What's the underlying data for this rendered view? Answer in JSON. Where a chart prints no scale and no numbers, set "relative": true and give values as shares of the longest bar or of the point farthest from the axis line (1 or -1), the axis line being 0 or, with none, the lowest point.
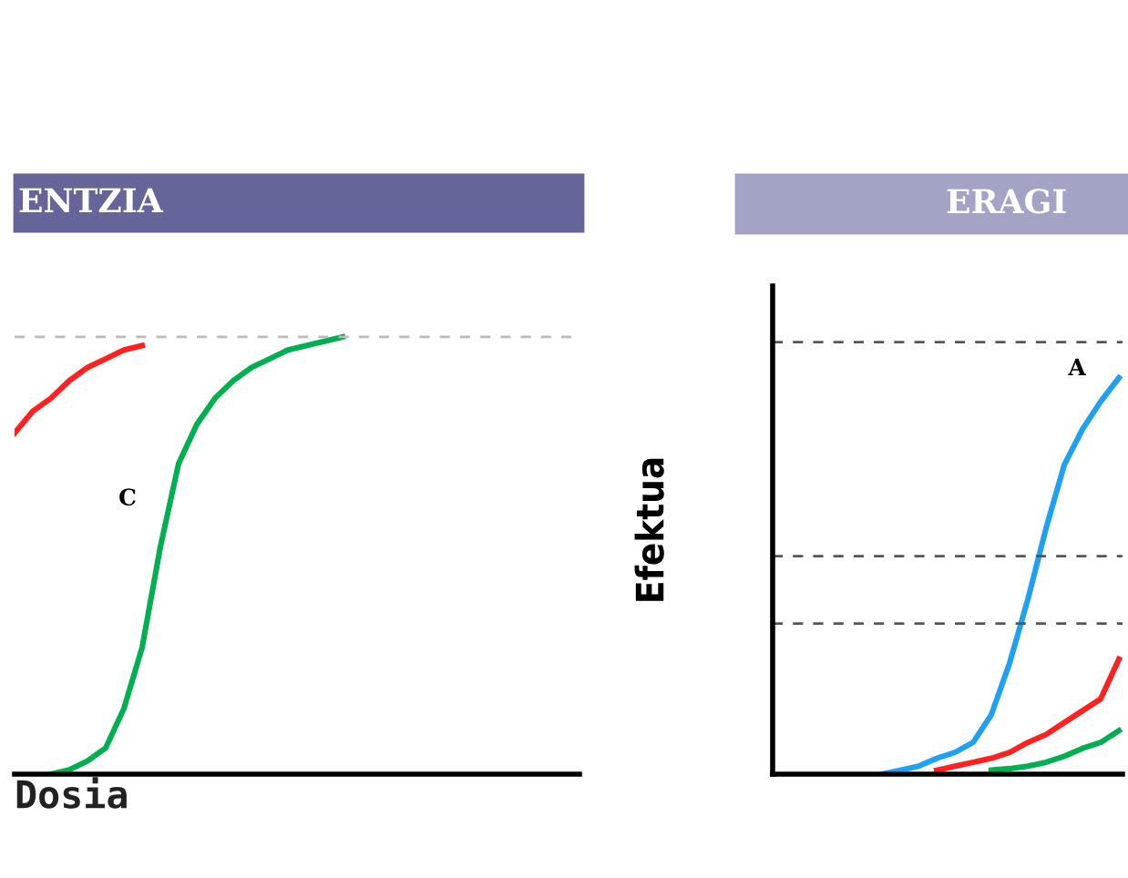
{
  "chart_data": [
    {
      "type": "line",
      "title": "ENTZIA",
      "xlabel": "Dosia",
      "relative": true,
      "marker": "none",
      "line_style": "solid",
      "categories": [
        null,
        null,
        null,
        null,
        null,
        null,
        null,
        null,
        null,
        null,
        null,
        null,
        null,
        null,
        null,
        null,
        null,
        null,
        null,
        null,
        null,
        null,
        null,
        null,
        null,
        null,
        null,
        null,
        null,
        null,
        null,
        null
      ],
      "series": [
        {
          "color": "#ff2020",
          "values": [
            0.78,
            0.83,
            0.86,
            0.9,
            0.93,
            0.95,
            0.97,
            0.98,
            null,
            null,
            null,
            null,
            null,
            null,
            null,
            null,
            null,
            null,
            null,
            null,
            null,
            null,
            null,
            null,
            null,
            null,
            null,
            null,
            null,
            null,
            null,
            null
          ]
        },
        {
          "color": "#00b050",
          "values": [
            null,
            null,
            0.0,
            0.01,
            0.03,
            0.06,
            0.15,
            0.29,
            0.52,
            0.71,
            0.8,
            0.86,
            0.9,
            0.93,
            0.95,
            0.97,
            0.98,
            0.99,
            1.0,
            null,
            null,
            null,
            null,
            null,
            null,
            null,
            null,
            null,
            null,
            null,
            null,
            null
          ]
        }
      ],
      "ref_lines": [
        {
          "axis": "y",
          "value": 1.0,
          "color": "#bbbbbb",
          "line_style": "dashed"
        }
      ],
      "annotations": [
        "C"
      ]
    },
    {
      "type": "line",
      "title": "ERAGI",
      "ylabel": "Efektua",
      "relative": true,
      "marker": "none",
      "line_style": "solid",
      "categories": [
        null,
        null,
        null,
        null,
        null,
        null,
        null,
        null,
        null,
        null,
        null,
        null,
        null,
        null,
        null,
        null,
        null,
        null,
        null,
        null
      ],
      "series": [
        {
          "color": "#1fa0f0",
          "values": [
            null,
            null,
            null,
            null,
            null,
            null,
            0.0,
            0.01,
            0.02,
            0.04,
            0.055,
            0.08,
            0.15,
            0.28,
            0.44,
            0.62,
            0.78,
            0.87,
            0.94,
            1.0
          ]
        },
        {
          "color": "#ff2020",
          "values": [
            null,
            null,
            null,
            null,
            null,
            null,
            null,
            null,
            null,
            0.01,
            0.02,
            0.03,
            0.04,
            0.055,
            0.08,
            0.1,
            0.13,
            0.16,
            0.19,
            0.29
          ]
        },
        {
          "color": "#00b050",
          "values": [
            null,
            null,
            null,
            null,
            null,
            null,
            null,
            null,
            null,
            null,
            null,
            null,
            0.01,
            0.014,
            0.02,
            0.03,
            0.045,
            0.065,
            0.08,
            0.11
          ]
        }
      ],
      "ref_lines": [
        {
          "axis": "y",
          "value": 1.09,
          "color": "#555555",
          "line_style": "dashed"
        },
        {
          "axis": "y",
          "value": 0.55,
          "color": "#555555",
          "line_style": "dashed"
        },
        {
          "axis": "y",
          "value": 0.38,
          "color": "#555555",
          "line_style": "dashed"
        }
      ],
      "annotations": [
        "A"
      ]
    }
  ]
}
